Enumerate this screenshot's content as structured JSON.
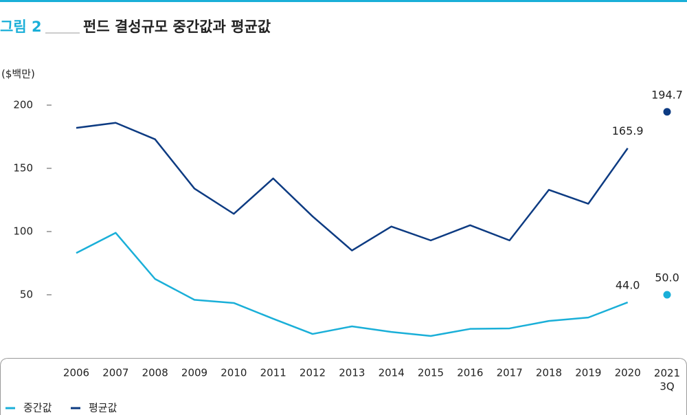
{
  "chart_data": {
    "type": "line",
    "figure_label": "그림 2",
    "title": "펀드 결성규모 중간값과 평균값",
    "y_unit": "($백만)",
    "categories": [
      "2006",
      "2007",
      "2008",
      "2009",
      "2010",
      "2011",
      "2012",
      "2013",
      "2014",
      "2015",
      "2016",
      "2017",
      "2018",
      "2019",
      "2020",
      "2021\n3Q"
    ],
    "series": [
      {
        "name": "중간값",
        "color": "#1aafd8",
        "values": [
          83,
          99,
          62.5,
          46,
          43.5,
          31,
          19,
          25,
          20.6,
          17.4,
          23,
          23.4,
          29.3,
          32,
          44.0,
          50.0
        ],
        "value_labels": [
          null,
          null,
          null,
          null,
          null,
          null,
          null,
          null,
          null,
          null,
          null,
          null,
          null,
          null,
          "44.0",
          "50.0"
        ]
      },
      {
        "name": "평균값",
        "color": "#0d3b82",
        "values": [
          182,
          186,
          173,
          134,
          114,
          142,
          112,
          85,
          104,
          93,
          105,
          93,
          133,
          122,
          165.9,
          194.7
        ],
        "value_labels": [
          null,
          null,
          null,
          null,
          null,
          null,
          null,
          null,
          null,
          null,
          null,
          null,
          null,
          null,
          "165.9",
          "194.7"
        ]
      }
    ],
    "last_point_as_dot": true,
    "ylim": [
      0,
      200
    ],
    "yticks": [
      50,
      100,
      150,
      200
    ],
    "legend": "bottom-left"
  }
}
